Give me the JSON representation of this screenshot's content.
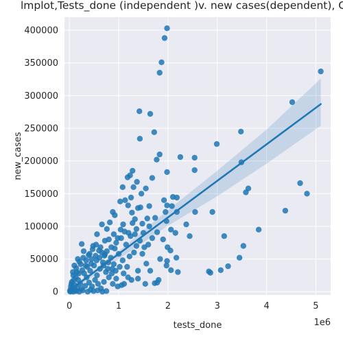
{
  "chart_data": {
    "type": "scatter",
    "title": "lmplot,Tests_done (independent )v. new cases(dependent), Ordinary Least Squares (OLS) Regression",
    "xlabel": "tests_done",
    "ylabel": "new_cases",
    "x_offset_label": "1e6",
    "x_unit_multiplier": 1000000,
    "xlim": [
      -0.1,
      5.3
    ],
    "ylim": [
      -5000,
      420000
    ],
    "xticks": [
      0,
      1,
      2,
      3,
      4,
      5
    ],
    "xtick_labels": [
      "0",
      "1",
      "2",
      "3",
      "4",
      "5"
    ],
    "yticks": [
      0,
      50000,
      100000,
      150000,
      200000,
      250000,
      300000,
      350000,
      400000
    ],
    "ytick_labels": [
      "0",
      "50000",
      "100000",
      "150000",
      "200000",
      "250000",
      "300000",
      "350000",
      "400000"
    ],
    "grid": true,
    "background": "#eaeaf2",
    "point_color": "#1f77b4",
    "ci_color": "#1f77b4",
    "regression_line": {
      "x": [
        0,
        5.1
      ],
      "y": [
        2000,
        287000
      ]
    },
    "confidence_band": {
      "x": [
        0,
        1,
        2,
        3,
        4,
        5.1
      ],
      "upper": [
        5000,
        62000,
        125000,
        185000,
        248000,
        326000
      ],
      "lower": [
        -1000,
        50000,
        101000,
        146000,
        196000,
        254000
      ]
    },
    "points": [
      [
        1.98,
        403000
      ],
      [
        1.93,
        388000
      ],
      [
        1.87,
        351000
      ],
      [
        1.83,
        335000
      ],
      [
        1.83,
        210000
      ],
      [
        5.1,
        337000
      ],
      [
        4.52,
        290000
      ],
      [
        1.42,
        276000
      ],
      [
        1.64,
        272000
      ],
      [
        1.72,
        244000
      ],
      [
        3.48,
        245000
      ],
      [
        1.43,
        234000
      ],
      [
        2.99,
        226000
      ],
      [
        2.25,
        206000
      ],
      [
        2.54,
        205000
      ],
      [
        1.77,
        202000
      ],
      [
        3.49,
        198000
      ],
      [
        2.54,
        186000
      ],
      [
        1.98,
        183000
      ],
      [
        1.28,
        185000
      ],
      [
        1.23,
        178000
      ],
      [
        1.18,
        175000
      ],
      [
        1.68,
        174000
      ],
      [
        1.37,
        168000
      ],
      [
        1.08,
        160000
      ],
      [
        1.55,
        158000
      ],
      [
        3.63,
        158000
      ],
      [
        3.58,
        152000
      ],
      [
        4.68,
        166000
      ],
      [
        4.82,
        150000
      ],
      [
        1.3,
        160000
      ],
      [
        1.46,
        150000
      ],
      [
        2.1,
        145000
      ],
      [
        2.18,
        144000
      ],
      [
        1.92,
        140000
      ],
      [
        1.03,
        138000
      ],
      [
        1.13,
        140000
      ],
      [
        1.25,
        144000
      ],
      [
        1.19,
        132000
      ],
      [
        1.39,
        128000
      ],
      [
        1.44,
        129000
      ],
      [
        1.62,
        131000
      ],
      [
        1.98,
        132000
      ],
      [
        2.08,
        131000
      ],
      [
        1.95,
        122000
      ],
      [
        2.18,
        122000
      ],
      [
        2.55,
        122000
      ],
      [
        2.9,
        122000
      ],
      [
        4.38,
        124000
      ],
      [
        1.27,
        121000
      ],
      [
        1.33,
        111000
      ],
      [
        0.88,
        122000
      ],
      [
        0.92,
        117000
      ],
      [
        1.74,
        113000
      ],
      [
        1.58,
        112000
      ],
      [
        1.09,
        103000
      ],
      [
        1.28,
        105000
      ],
      [
        1.48,
        104000
      ],
      [
        1.62,
        100000
      ],
      [
        1.97,
        108000
      ],
      [
        2.37,
        103000
      ],
      [
        2.06,
        95000
      ],
      [
        1.78,
        91000
      ],
      [
        1.2,
        90000
      ],
      [
        1.04,
        95000
      ],
      [
        0.82,
        106000
      ],
      [
        0.76,
        96000
      ],
      [
        0.66,
        103000
      ],
      [
        0.56,
        88000
      ],
      [
        0.98,
        82000
      ],
      [
        1.33,
        88000
      ],
      [
        3.84,
        95000
      ],
      [
        3.14,
        85000
      ],
      [
        2.44,
        85000
      ],
      [
        2.15,
        90000
      ],
      [
        1.9,
        80000
      ],
      [
        1.99,
        68000
      ],
      [
        2.05,
        63000
      ],
      [
        2.17,
        52000
      ],
      [
        1.98,
        47000
      ],
      [
        1.84,
        50000
      ],
      [
        1.97,
        40000
      ],
      [
        2.06,
        33000
      ],
      [
        3.45,
        52000
      ],
      [
        3.53,
        70000
      ],
      [
        3.22,
        39000
      ],
      [
        3.07,
        33000
      ],
      [
        2.83,
        31000
      ],
      [
        2.86,
        29000
      ],
      [
        2.2,
        30000
      ],
      [
        1.56,
        43000
      ],
      [
        1.39,
        32000
      ],
      [
        1.64,
        32000
      ],
      [
        1.39,
        20000
      ],
      [
        1.81,
        18000
      ],
      [
        1.78,
        14000
      ],
      [
        1.73,
        13000
      ],
      [
        1.54,
        12000
      ],
      [
        1.06,
        10000
      ],
      [
        1.11,
        12000
      ],
      [
        0.95,
        20000
      ],
      [
        0.87,
        35000
      ],
      [
        0.79,
        45000
      ],
      [
        0.72,
        57000
      ],
      [
        0.6,
        63000
      ],
      [
        0.48,
        70000
      ],
      [
        0.39,
        56000
      ],
      [
        0.28,
        52000
      ],
      [
        0.25,
        73000
      ],
      [
        0.2,
        46000
      ],
      [
        0.14,
        36000
      ],
      [
        0.08,
        25000
      ],
      [
        0.05,
        15000
      ],
      [
        0.03,
        8000
      ],
      [
        0.02,
        3000
      ],
      [
        0.01,
        1000
      ],
      [
        0.06,
        5000
      ],
      [
        0.11,
        10000
      ],
      [
        0.18,
        18000
      ],
      [
        0.22,
        12000
      ],
      [
        0.3,
        28000
      ],
      [
        0.35,
        22000
      ],
      [
        0.42,
        32000
      ],
      [
        0.5,
        40000
      ],
      [
        0.56,
        25000
      ],
      [
        0.62,
        35000
      ],
      [
        0.68,
        45000
      ],
      [
        0.74,
        30000
      ],
      [
        0.8,
        22000
      ],
      [
        0.9,
        42000
      ],
      [
        0.12,
        2000
      ],
      [
        0.16,
        6000
      ],
      [
        0.24,
        4000
      ],
      [
        0.32,
        9000
      ],
      [
        0.4,
        14000
      ],
      [
        0.46,
        8000
      ],
      [
        0.52,
        18000
      ],
      [
        0.58,
        12000
      ],
      [
        0.64,
        5000
      ],
      [
        0.7,
        15000
      ],
      [
        0.15,
        30000
      ],
      [
        0.33,
        40000
      ],
      [
        0.45,
        50000
      ],
      [
        0.53,
        55000
      ],
      [
        0.66,
        60000
      ],
      [
        0.76,
        62000
      ],
      [
        0.84,
        52000
      ],
      [
        0.92,
        66000
      ],
      [
        1.0,
        58000
      ],
      [
        1.08,
        48000
      ],
      [
        1.17,
        38000
      ],
      [
        1.22,
        54000
      ],
      [
        1.31,
        60000
      ],
      [
        1.36,
        70000
      ],
      [
        1.43,
        78000
      ],
      [
        1.15,
        72000
      ],
      [
        1.05,
        82000
      ],
      [
        0.95,
        75000
      ],
      [
        0.85,
        68000
      ],
      [
        0.72,
        78000
      ],
      [
        0.04,
        12000
      ],
      [
        0.09,
        18000
      ],
      [
        0.13,
        22000
      ],
      [
        0.19,
        28000
      ],
      [
        0.26,
        33000
      ],
      [
        0.36,
        38000
      ],
      [
        0.44,
        43000
      ],
      [
        0.55,
        48000
      ],
      [
        0.61,
        52000
      ],
      [
        0.69,
        40000
      ],
      [
        0.78,
        35000
      ],
      [
        0.86,
        28000
      ],
      [
        0.94,
        32000
      ],
      [
        1.02,
        38000
      ],
      [
        1.1,
        28000
      ],
      [
        1.19,
        22000
      ],
      [
        1.26,
        18000
      ],
      [
        0.88,
        12000
      ],
      [
        0.98,
        8000
      ],
      [
        0.07,
        30000
      ],
      [
        0.1,
        40000
      ],
      [
        0.17,
        50000
      ],
      [
        0.23,
        42000
      ],
      [
        0.29,
        62000
      ],
      [
        0.34,
        48000
      ],
      [
        0.41,
        58000
      ],
      [
        0.47,
        65000
      ],
      [
        0.54,
        72000
      ],
      [
        0.63,
        68000
      ],
      [
        0.71,
        55000
      ],
      [
        0.02,
        0
      ],
      [
        0.05,
        2000
      ],
      [
        0.08,
        0
      ],
      [
        0.14,
        1000
      ],
      [
        0.2,
        0
      ],
      [
        0.27,
        2000
      ],
      [
        0.37,
        0
      ],
      [
        0.43,
        3000
      ],
      [
        0.49,
        1000
      ],
      [
        0.57,
        2000
      ],
      [
        0.67,
        0
      ],
      [
        0.75,
        1000
      ],
      [
        1.48,
        58000
      ],
      [
        1.52,
        68000
      ],
      [
        1.6,
        72000
      ],
      [
        1.68,
        82000
      ],
      [
        1.24,
        85000
      ],
      [
        1.12,
        92000
      ],
      [
        1.36,
        96000
      ],
      [
        1.5,
        90000
      ],
      [
        0.9,
        88000
      ],
      [
        0.8,
        80000
      ]
    ]
  }
}
